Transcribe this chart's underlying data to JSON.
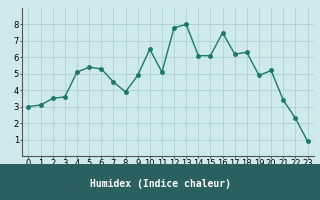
{
  "x": [
    0,
    1,
    2,
    3,
    4,
    5,
    6,
    7,
    8,
    9,
    10,
    11,
    12,
    13,
    14,
    15,
    16,
    17,
    18,
    19,
    20,
    21,
    22,
    23
  ],
  "y": [
    3.0,
    3.1,
    3.5,
    3.6,
    5.1,
    5.4,
    5.3,
    4.5,
    3.9,
    4.9,
    6.5,
    5.1,
    7.8,
    8.0,
    6.1,
    6.1,
    7.5,
    6.2,
    6.3,
    4.9,
    5.2,
    3.4,
    2.3,
    0.9
  ],
  "line_color": "#1a7a6e",
  "marker_color": "#1a7a6e",
  "bg_color": "#ceeaea",
  "grid_color": "#b0d0d0",
  "xlabel": "Humidex (Indice chaleur)",
  "xlim": [
    -0.5,
    23.5
  ],
  "ylim": [
    0,
    9
  ],
  "yticks": [
    1,
    2,
    3,
    4,
    5,
    6,
    7,
    8
  ],
  "xticks": [
    0,
    1,
    2,
    3,
    4,
    5,
    6,
    7,
    8,
    9,
    10,
    11,
    12,
    13,
    14,
    15,
    16,
    17,
    18,
    19,
    20,
    21,
    22,
    23
  ],
  "xlabel_fontsize": 7,
  "tick_fontsize": 6,
  "line_width": 1.0,
  "marker_size": 2.5,
  "bottom_bar_color": "#2a6060",
  "bottom_bar_height": 0.18
}
